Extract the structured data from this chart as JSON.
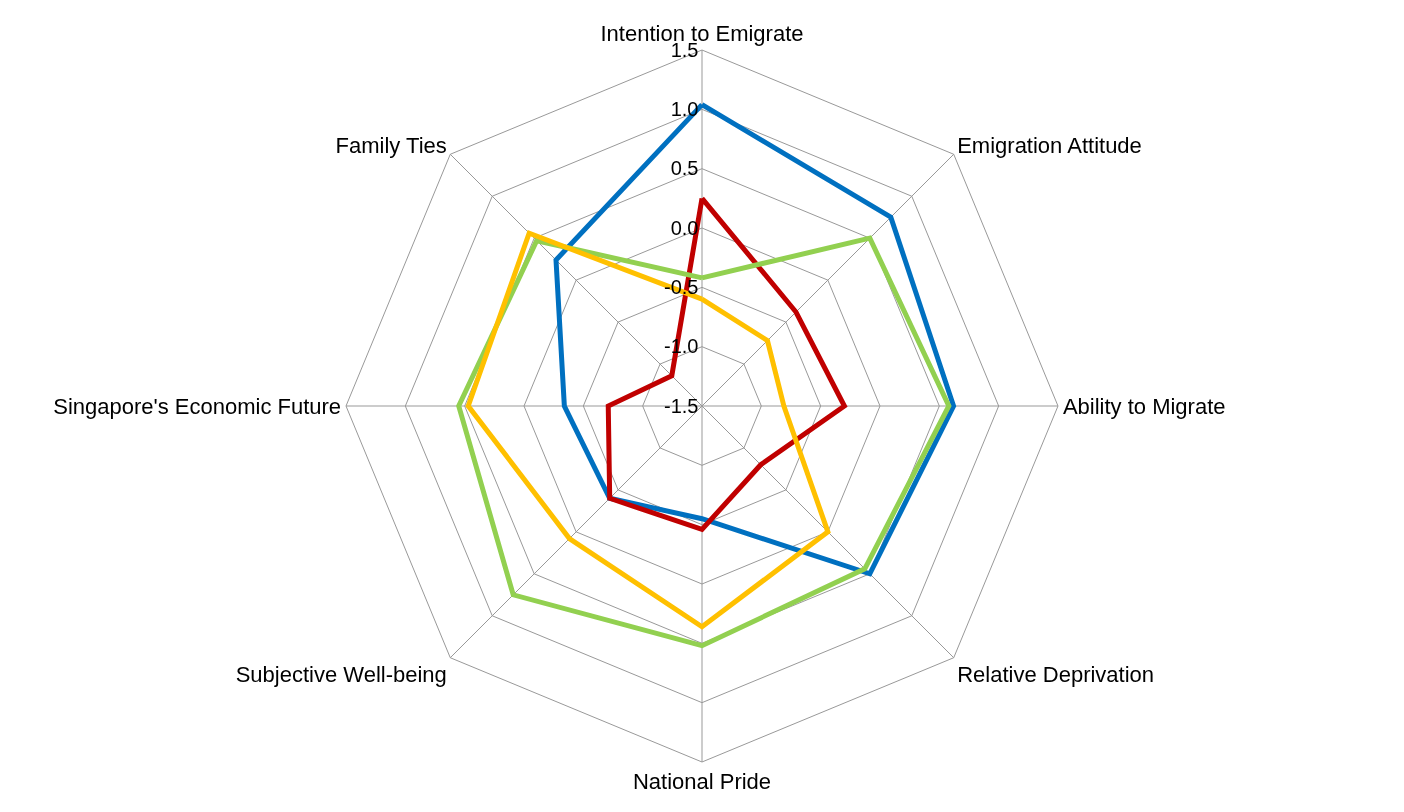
{
  "chart_data": {
    "type": "radar",
    "categories": [
      "Intention to Emigrate",
      "Emigration Attitude",
      "Ability to Migrate",
      "Relative Deprivation",
      "National Pride",
      "Subjective Well-being",
      "Singapore's Economic Future",
      "Family Ties"
    ],
    "ylim": [
      -1.5,
      1.5
    ],
    "yticks": [
      {
        "value": -1.5,
        "label": "-1.5"
      },
      {
        "value": -1.0,
        "label": "-1.0"
      },
      {
        "value": -0.5,
        "label": "-0.5"
      },
      {
        "value": 0,
        "label": "0.0"
      },
      {
        "value": 0.5,
        "label": "0.5"
      },
      {
        "value": 1.0,
        "label": "1.0"
      },
      {
        "value": 1.5,
        "label": "1.5"
      }
    ],
    "grid": true,
    "line_style": "solid",
    "series": [
      {
        "color": "#0070c0",
        "values": [
          1.04,
          0.75,
          0.62,
          0.5,
          -0.55,
          -0.4,
          -0.34,
          0.24
        ]
      },
      {
        "color": "#c00000",
        "values": [
          0.25,
          -0.38,
          -0.3,
          -0.8,
          -0.46,
          -0.4,
          -0.71,
          -1.14
        ]
      },
      {
        "color": "#92d050",
        "values": [
          -0.42,
          0.5,
          0.58,
          0.44,
          0.52,
          0.75,
          0.55,
          0.47
        ]
      },
      {
        "color": "#ffc000",
        "values": [
          -0.6,
          -0.72,
          -0.81,
          0.0,
          0.36,
          0.08,
          0.47,
          0.56
        ]
      }
    ]
  }
}
